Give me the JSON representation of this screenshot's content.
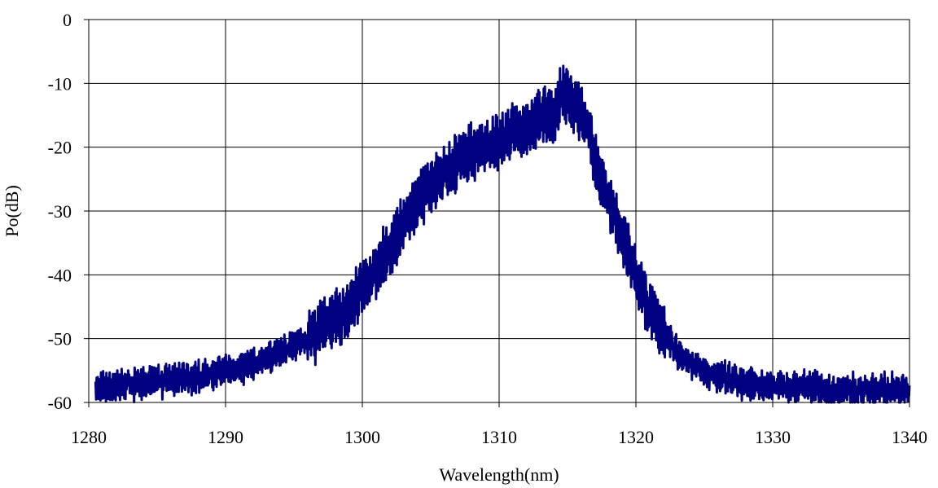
{
  "chart_data": {
    "type": "line",
    "title": "",
    "xlabel": "Wavelength(nm)",
    "ylabel": "Po(dB)",
    "xlim": [
      1280,
      1340
    ],
    "ylim": [
      -60,
      0
    ],
    "x_ticks": [
      1280,
      1290,
      1300,
      1310,
      1320,
      1330,
      1340
    ],
    "y_ticks": [
      0,
      -10,
      -20,
      -30,
      -40,
      -50,
      -60
    ],
    "x_tick_labels": [
      "1280",
      "1290",
      "1300",
      "1310",
      "1320",
      "1330",
      "1340"
    ],
    "y_tick_labels": [
      "0",
      "-10",
      "-20",
      "-30",
      "-40",
      "-50",
      "-60"
    ],
    "grid": true,
    "legend": "none",
    "series_color": "#000080",
    "series": [
      {
        "x": [
          1280.5,
          1282,
          1284,
          1286,
          1288,
          1290,
          1292,
          1294,
          1296,
          1298,
          1299,
          1300,
          1301,
          1302,
          1303,
          1304,
          1305,
          1306,
          1307,
          1308,
          1309,
          1310,
          1311,
          1312,
          1313,
          1314,
          1314.6,
          1315.2,
          1316,
          1316.5,
          1317,
          1318,
          1319,
          1320,
          1321,
          1322,
          1323,
          1324,
          1326,
          1328,
          1330,
          1332,
          1334,
          1336,
          1338,
          1340
        ],
        "y": [
          -58,
          -57.5,
          -57,
          -56.5,
          -56,
          -55,
          -54,
          -52,
          -50,
          -47,
          -45,
          -42,
          -39,
          -36,
          -32,
          -29,
          -26,
          -24,
          -22,
          -21,
          -20,
          -19,
          -18,
          -17,
          -15.5,
          -14.5,
          -12,
          -13,
          -14.5,
          -17,
          -22,
          -28,
          -34,
          -40,
          -45,
          -49,
          -52,
          -54,
          -56,
          -57,
          -57.5,
          -57.5,
          -58,
          -58,
          -58,
          -58
        ]
      }
    ]
  }
}
